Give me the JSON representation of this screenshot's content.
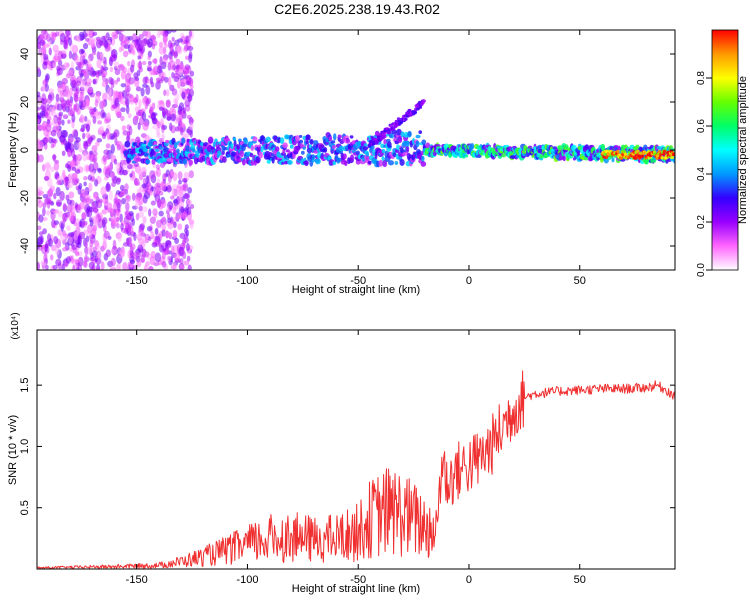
{
  "figure_title": "C2E6.2025.238.19.43.R02",
  "colors": {
    "snr_line": "#f03030",
    "colormap": [
      "#ffffff",
      "#ff66ff",
      "#9900ff",
      "#3300ff",
      "#0099ff",
      "#00ffff",
      "#00ff66",
      "#66ff00",
      "#ffff00",
      "#ff9900",
      "#ff0000"
    ]
  },
  "chart_data": [
    {
      "type": "heatmap",
      "title": "C2E6.2025.238.19.43.R02",
      "xlabel": "Height of straight line (km)",
      "ylabel": "Frequency (Hz)",
      "xlim": [
        -195,
        93
      ],
      "ylim": [
        -50,
        50
      ],
      "xticks": [
        -150,
        -100,
        -50,
        0,
        50
      ],
      "xtick_labels": [
        "-150",
        "-100",
        "-50",
        "0",
        "50"
      ],
      "yticks": [
        -40,
        -20,
        0,
        20,
        40
      ],
      "ytick_labels": [
        "-40",
        "-20",
        "0",
        "20",
        "40"
      ],
      "colorbar": {
        "label": "Normalized spectral amplitude",
        "range": [
          0,
          1
        ],
        "ticks": [
          0.0,
          0.2,
          0.4,
          0.6,
          0.8
        ],
        "tick_labels": [
          "0.0",
          "0.2",
          "0.4",
          "0.6",
          "0.8"
        ]
      },
      "features": [
        {
          "desc": "broadband noise",
          "x_range": [
            -195,
            -125
          ],
          "freq_range": [
            -50,
            50
          ],
          "amplitude": 0.15
        },
        {
          "desc": "main echo band",
          "x_range": [
            -155,
            -20
          ],
          "center_hz": [
            -1,
            1
          ],
          "half_width_hz": [
            4,
            7
          ],
          "amplitude": 0.3
        },
        {
          "desc": "upward branch",
          "x_range": [
            -45,
            -20
          ],
          "freq_hz": [
            2,
            20
          ],
          "amplitude": 0.25
        },
        {
          "desc": "narrow stable band",
          "x_range": [
            -20,
            93
          ],
          "center_hz": [
            0,
            -2
          ],
          "half_width_hz": [
            2,
            3
          ],
          "amplitude": 0.45
        },
        {
          "desc": "peak segment",
          "x_range": [
            60,
            93
          ],
          "freq_hz": -2,
          "amplitude": 0.97
        }
      ]
    },
    {
      "type": "line",
      "title": "",
      "xlabel": "Height of straight line (km)",
      "ylabel": "SNR (10 * v/v)",
      "y_multiplier_label": "(x10⁴)",
      "xlim": [
        -195,
        93
      ],
      "ylim": [
        0,
        1.95
      ],
      "xticks": [
        -150,
        -100,
        -50,
        0,
        50
      ],
      "xtick_labels": [
        "-150",
        "-100",
        "-50",
        "0",
        "50"
      ],
      "yticks": [
        0.5,
        1.0,
        1.5
      ],
      "ytick_labels": [
        "0.5",
        "1.0",
        "1.5"
      ],
      "series": [
        {
          "name": "SNR",
          "x": [
            -195,
            -160,
            -140,
            -130,
            -120,
            -110,
            -100,
            -90,
            -80,
            -70,
            -60,
            -50,
            -45,
            -40,
            -35,
            -30,
            -25,
            -20,
            -15,
            -12,
            -10,
            -5,
            0,
            5,
            10,
            15,
            20,
            25,
            30,
            40,
            50,
            60,
            70,
            80,
            85,
            90,
            93
          ],
          "values": [
            0.01,
            0.02,
            0.03,
            0.06,
            0.1,
            0.15,
            0.2,
            0.25,
            0.26,
            0.24,
            0.25,
            0.3,
            0.4,
            0.45,
            0.48,
            0.45,
            0.4,
            0.35,
            0.3,
            0.9,
            0.7,
            0.8,
            0.85,
            0.9,
            1.0,
            1.15,
            1.3,
            1.4,
            1.43,
            1.45,
            1.46,
            1.47,
            1.47,
            1.48,
            1.5,
            1.45,
            1.4
          ]
        }
      ]
    }
  ]
}
